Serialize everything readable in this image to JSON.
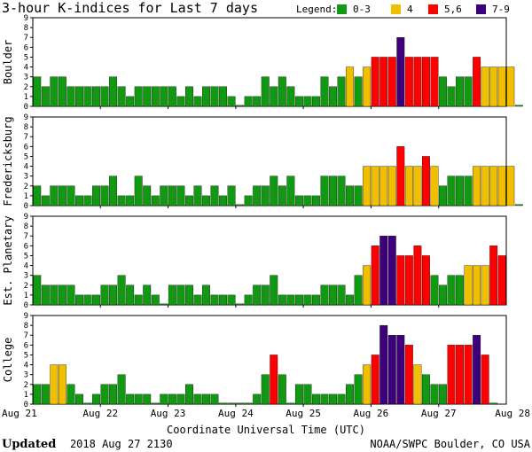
{
  "chart_data": {
    "type": "bar",
    "title": "3-hour K-indices for Last 7 days",
    "legend": {
      "label": "Legend:",
      "placement": "top-right",
      "items": [
        {
          "label": "0-3",
          "color": "#119911"
        },
        {
          "label": "4",
          "color": "#f0c000"
        },
        {
          "label": "5,6",
          "color": "#ff0000"
        },
        {
          "label": "7-9",
          "color": "#3d007a"
        }
      ]
    },
    "xlabel": "Coordinate Universal Time (UTC)",
    "x_ticks": [
      "Aug 21",
      "Aug 22",
      "Aug 23",
      "Aug 24",
      "Aug 25",
      "Aug 26",
      "Aug 27",
      "Aug 28"
    ],
    "ylim": [
      0,
      9
    ],
    "y_ticks": [
      0,
      1,
      2,
      3,
      4,
      5,
      6,
      7,
      8,
      9
    ],
    "grid": false,
    "bins_per_day": 8,
    "panels": [
      {
        "name": "Boulder",
        "values": [
          3,
          2,
          3,
          3,
          2,
          2,
          2,
          2,
          2,
          3,
          2,
          1,
          2,
          2,
          2,
          2,
          2,
          1,
          2,
          1,
          2,
          2,
          2,
          1,
          0,
          1,
          1,
          3,
          2,
          3,
          2,
          1,
          1,
          1,
          3,
          2,
          3,
          4,
          3,
          4,
          5,
          5,
          5,
          7,
          5,
          5,
          5,
          5,
          3,
          2,
          3,
          3,
          5,
          4,
          4,
          4,
          4,
          0
        ]
      },
      {
        "name": "Fredericksburg",
        "values": [
          2,
          1,
          2,
          2,
          2,
          1,
          1,
          2,
          2,
          3,
          1,
          1,
          3,
          2,
          1,
          2,
          2,
          2,
          1,
          2,
          1,
          2,
          1,
          2,
          0,
          1,
          2,
          2,
          3,
          2,
          3,
          1,
          1,
          1,
          3,
          3,
          3,
          2,
          2,
          4,
          4,
          4,
          4,
          6,
          4,
          4,
          5,
          4,
          2,
          3,
          3,
          3,
          4,
          4,
          4,
          4,
          4,
          0
        ]
      },
      {
        "name": "Est. Planetary",
        "values": [
          3,
          2,
          2,
          2,
          2,
          1,
          1,
          1,
          2,
          2,
          3,
          2,
          1,
          2,
          1,
          0,
          2,
          2,
          2,
          1,
          2,
          1,
          1,
          1,
          0,
          1,
          2,
          2,
          3,
          1,
          1,
          1,
          1,
          1,
          2,
          2,
          2,
          1,
          3,
          4,
          6,
          7,
          7,
          5,
          5,
          6,
          5,
          3,
          2,
          3,
          3,
          4,
          4,
          4,
          6,
          5
        ]
      },
      {
        "name": "College",
        "values": [
          2,
          2,
          4,
          4,
          2,
          1,
          0,
          1,
          2,
          2,
          3,
          1,
          1,
          1,
          0,
          1,
          1,
          1,
          2,
          1,
          1,
          1,
          0,
          0,
          0,
          0,
          1,
          3,
          5,
          3,
          0,
          2,
          2,
          1,
          1,
          1,
          1,
          2,
          3,
          4,
          5,
          8,
          7,
          7,
          6,
          4,
          3,
          2,
          2,
          6,
          6,
          6,
          7,
          5,
          0
        ]
      }
    ]
  },
  "footer": {
    "updated_label": "Updated",
    "updated_value": "2018 Aug 27 2130",
    "credit": "NOAA/SWPC Boulder, CO USA"
  }
}
